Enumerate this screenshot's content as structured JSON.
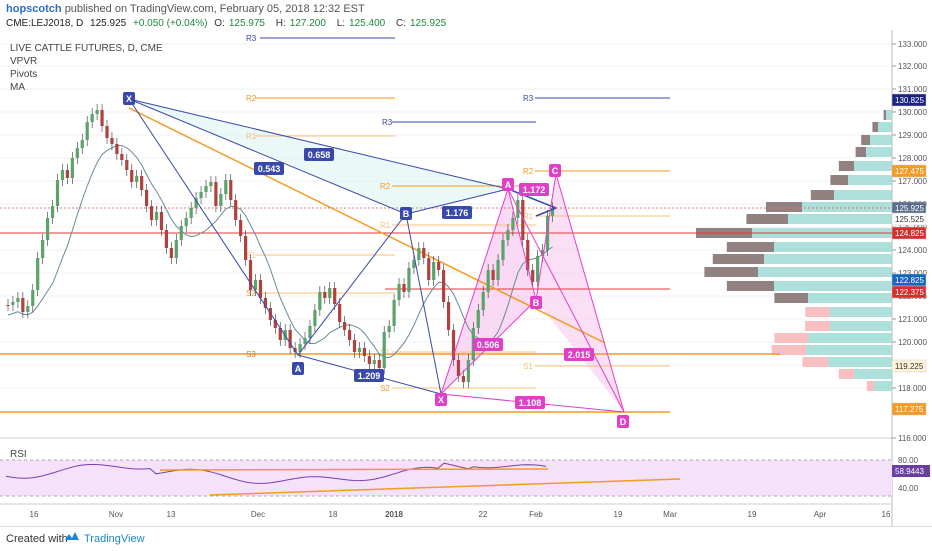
{
  "header": {
    "author": "hopscotch",
    "published": "published on TradingView.com, February 05, 2018 12:32 EST",
    "symbol": "CME:LEJ2018, D",
    "last": "125.925",
    "change": "+0.050 (+0.04%)",
    "o_label": "O:",
    "o_val": "125.975",
    "h_label": "H:",
    "h_val": "127.200",
    "l_label": "L:",
    "l_val": "125.400",
    "c_label": "C:",
    "c_val": "125.925"
  },
  "indicators": [
    "LIVE CATTLE FUTURES, D, CME",
    "VPVR",
    "Pivots",
    "MA"
  ],
  "price_axis": {
    "ticks": [
      "133.000",
      "132.000",
      "131.000",
      "130.000",
      "129.000",
      "128.000",
      "127.000",
      "126.000",
      "125.000",
      "124.000",
      "123.000",
      "122.000",
      "121.000",
      "120.000",
      "119.000",
      "118.000",
      "116.000"
    ],
    "tags": [
      {
        "text": "130.825",
        "color": "#1a237e",
        "text_color": "#ffffff"
      },
      {
        "text": "127.475",
        "color": "#f59a23",
        "text_color": "#ffffff"
      },
      {
        "text": "125.925",
        "color": "#5b6f8a",
        "text_color": "#ffffff"
      },
      {
        "text": "125.525",
        "color": "#ffffff",
        "text_color": "#333333"
      },
      {
        "text": "124.825",
        "color": "#d32f2f",
        "text_color": "#ffffff"
      },
      {
        "text": "122.825",
        "color": "#1565c0",
        "text_color": "#ffffff"
      },
      {
        "text": "122.375",
        "color": "#d32f2f",
        "text_color": "#ffffff"
      },
      {
        "text": "119.225",
        "color": "#fff3d6",
        "text_color": "#333333"
      },
      {
        "text": "117.275",
        "color": "#f59a23",
        "text_color": "#ffffff"
      }
    ]
  },
  "time_axis": [
    "16",
    "Nov",
    "13",
    "Dec",
    "18",
    "2018",
    "22",
    "Feb",
    "19",
    "Mar",
    "19",
    "Apr",
    "16"
  ],
  "pattern_points": [
    "X",
    "A",
    "B",
    "C",
    "D"
  ],
  "pattern_ratios": [
    "0.543",
    "0.658",
    "1.176",
    "1.209",
    "0.506",
    "1.172",
    "2.015",
    "1.108"
  ],
  "pivot_labels": [
    "R3",
    "R2",
    "R1",
    "S1",
    "S2",
    "S3"
  ],
  "rsi": {
    "label": "RSI",
    "value": "58.9443",
    "ticks": [
      "80.00",
      "40.00"
    ]
  },
  "footer": {
    "created_with": "Created with",
    "brand": "TradingView"
  }
}
